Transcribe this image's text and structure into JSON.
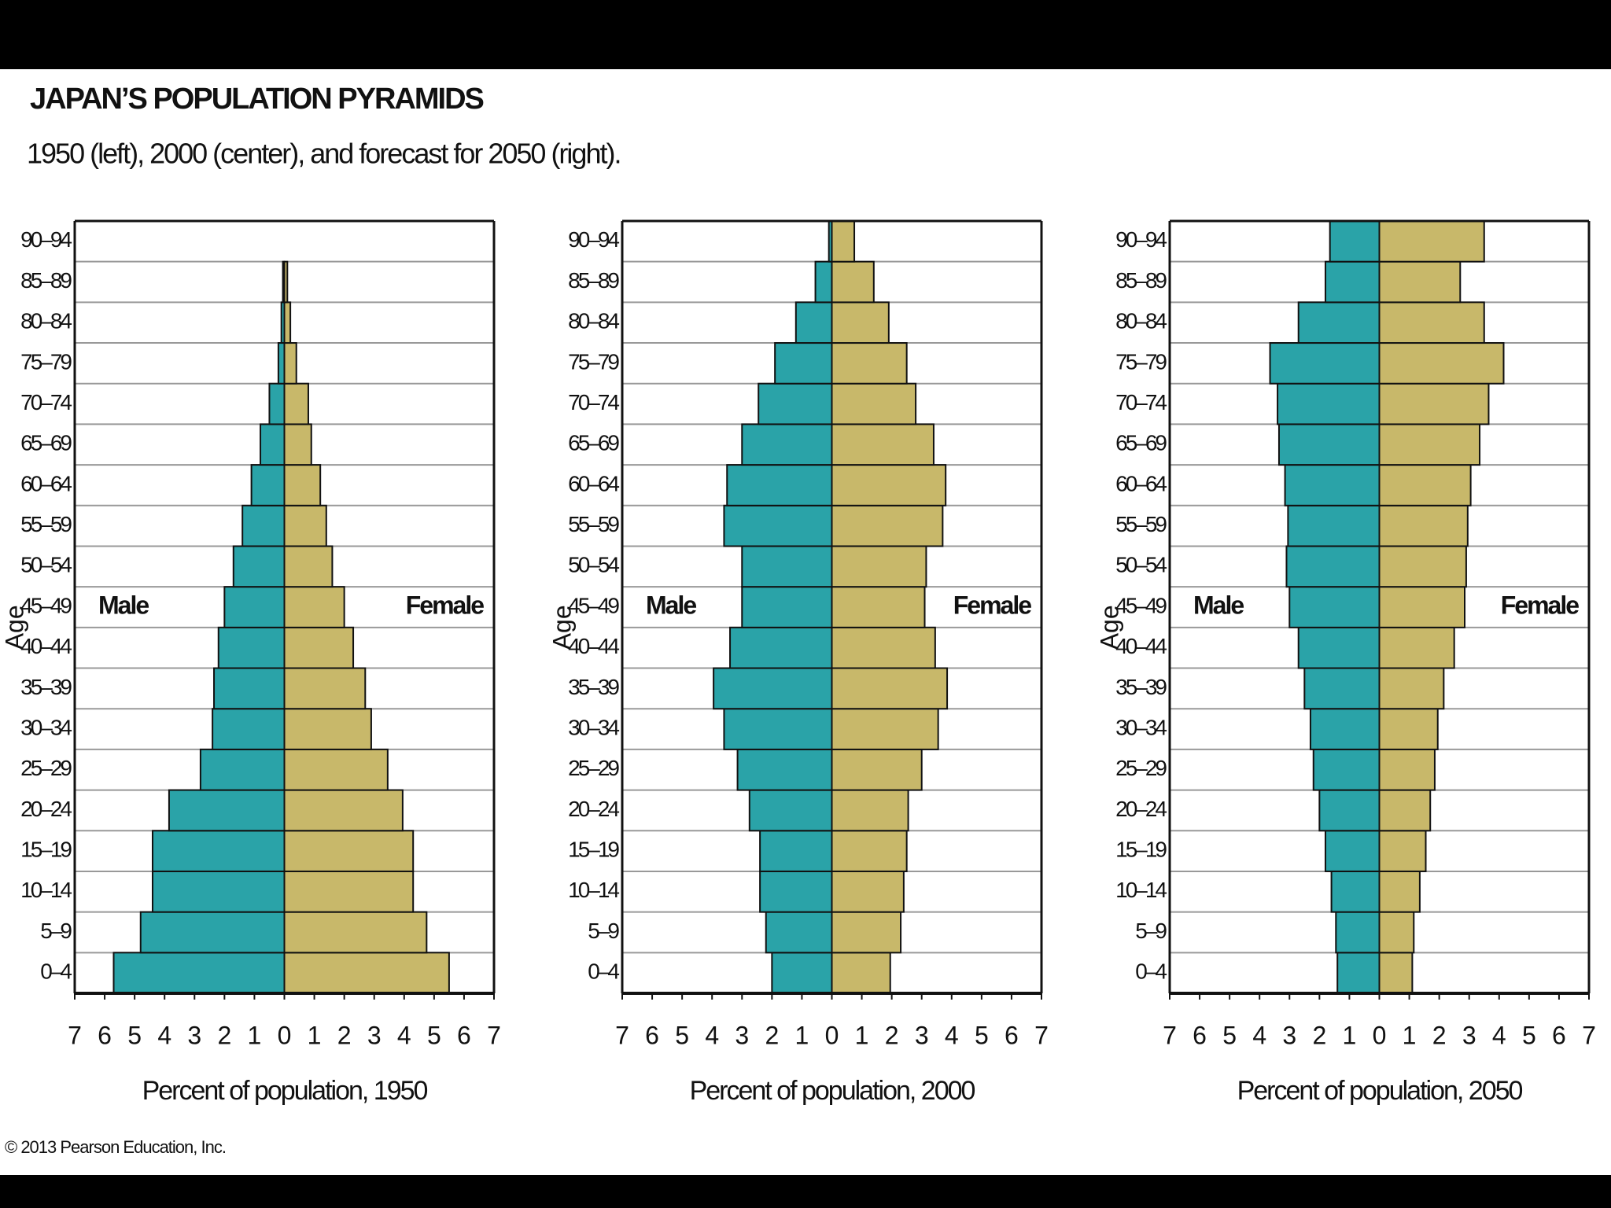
{
  "title": "JAPAN’S POPULATION PYRAMIDS",
  "subtitle": "1950 (left), 2000 (center), and forecast for 2050 (right).",
  "copyright": "© 2013 Pearson Education, Inc.",
  "chart_data": [
    {
      "type": "pyramid",
      "y_label": "Age",
      "x_label": "Percent of population, 1950",
      "categories": [
        "0–4",
        "5–9",
        "10–14",
        "15–19",
        "20–24",
        "25–29",
        "30–34",
        "35–39",
        "40–44",
        "45–49",
        "50–54",
        "55–59",
        "60–64",
        "65–69",
        "70–74",
        "75–79",
        "80–84",
        "85–89",
        "90–94"
      ],
      "series": [
        {
          "name": "Male",
          "side": "left",
          "color": "#2aa3a8",
          "values": [
            5.7,
            4.8,
            4.4,
            4.4,
            3.85,
            2.8,
            2.4,
            2.35,
            2.2,
            2.0,
            1.7,
            1.4,
            1.1,
            0.8,
            0.5,
            0.2,
            0.1,
            0.05,
            0
          ]
        },
        {
          "name": "Female",
          "side": "right",
          "color": "#c8b86a",
          "values": [
            5.5,
            4.75,
            4.3,
            4.3,
            3.95,
            3.45,
            2.9,
            2.7,
            2.3,
            2.0,
            1.6,
            1.4,
            1.2,
            0.9,
            0.8,
            0.4,
            0.2,
            0.1,
            0
          ]
        }
      ],
      "xlim": [
        -7,
        7
      ],
      "xticks": [
        {
          "value": -7,
          "label": "7"
        },
        {
          "value": -6,
          "label": "6"
        },
        {
          "value": -5,
          "label": "5"
        },
        {
          "value": -4,
          "label": "4"
        },
        {
          "value": -3,
          "label": "3"
        },
        {
          "value": -2,
          "label": "2"
        },
        {
          "value": -1,
          "label": "1"
        },
        0,
        1,
        2,
        3,
        4,
        5,
        6,
        7
      ]
    },
    {
      "type": "pyramid",
      "y_label": "Age",
      "x_label": "Percent of population, 2000",
      "categories": [
        "0–4",
        "5–9",
        "10–14",
        "15–19",
        "20–24",
        "25–29",
        "30–34",
        "35–39",
        "40–44",
        "45–49",
        "50–54",
        "55–59",
        "60–64",
        "65–69",
        "70–74",
        "75–79",
        "80–84",
        "85–89",
        "90–94"
      ],
      "series": [
        {
          "name": "Male",
          "side": "left",
          "color": "#2aa3a8",
          "values": [
            2.0,
            2.2,
            2.4,
            2.4,
            2.75,
            3.15,
            3.6,
            3.95,
            3.4,
            3.0,
            3.0,
            3.6,
            3.5,
            3.0,
            2.45,
            1.9,
            1.2,
            0.55,
            0.1
          ]
        },
        {
          "name": "Female",
          "side": "right",
          "color": "#c8b86a",
          "values": [
            1.95,
            2.3,
            2.4,
            2.5,
            2.55,
            3.0,
            3.55,
            3.85,
            3.45,
            3.1,
            3.15,
            3.7,
            3.8,
            3.4,
            2.8,
            2.5,
            1.9,
            1.4,
            0.75
          ]
        }
      ],
      "xlim": [
        -7,
        7
      ],
      "xticks": [
        {
          "value": -7,
          "label": "7"
        },
        {
          "value": -6,
          "label": "6"
        },
        {
          "value": -5,
          "label": "5"
        },
        {
          "value": -4,
          "label": "4"
        },
        {
          "value": -3,
          "label": "3"
        },
        {
          "value": -2,
          "label": "2"
        },
        {
          "value": -1,
          "label": "1"
        },
        0,
        1,
        2,
        3,
        4,
        5,
        6,
        7
      ]
    },
    {
      "type": "pyramid",
      "y_label": "Age",
      "x_label": "Percent of population, 2050",
      "categories": [
        "0–4",
        "5–9",
        "10–14",
        "15–19",
        "20–24",
        "25–29",
        "30–34",
        "35–39",
        "40–44",
        "45–49",
        "50–54",
        "55–59",
        "60–64",
        "65–69",
        "70–74",
        "75–79",
        "80–84",
        "85–89",
        "90–94"
      ],
      "series": [
        {
          "name": "Male",
          "side": "left",
          "color": "#2aa3a8",
          "values": [
            1.4,
            1.45,
            1.6,
            1.8,
            2.0,
            2.2,
            2.3,
            2.5,
            2.7,
            3.0,
            3.1,
            3.05,
            3.15,
            3.35,
            3.4,
            3.65,
            2.7,
            1.8,
            1.65
          ]
        },
        {
          "name": "Female",
          "side": "right",
          "color": "#c8b86a",
          "values": [
            1.1,
            1.15,
            1.35,
            1.55,
            1.7,
            1.85,
            1.95,
            2.15,
            2.5,
            2.85,
            2.9,
            2.95,
            3.05,
            3.35,
            3.65,
            4.15,
            3.5,
            2.7,
            3.5
          ]
        }
      ],
      "xlim": [
        -7,
        7
      ],
      "xticks": [
        {
          "value": -7,
          "label": "7"
        },
        {
          "value": -6,
          "label": "6"
        },
        {
          "value": -5,
          "label": "5"
        },
        {
          "value": -4,
          "label": "4"
        },
        {
          "value": -3,
          "label": "3"
        },
        {
          "value": -2,
          "label": "2"
        },
        {
          "value": -1,
          "label": "1"
        },
        0,
        1,
        2,
        3,
        4,
        5,
        6,
        7
      ]
    }
  ]
}
